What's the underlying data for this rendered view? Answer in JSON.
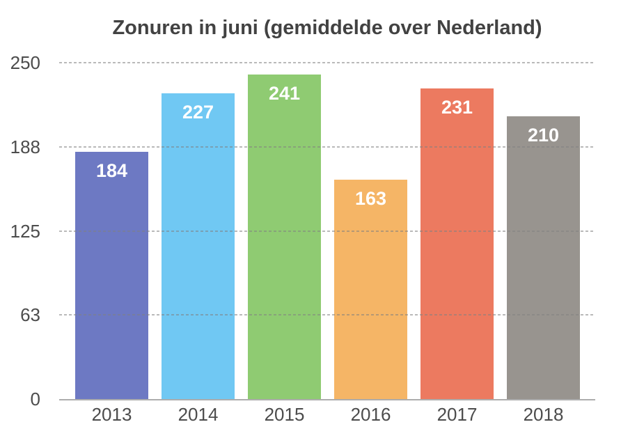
{
  "chart_data": {
    "type": "bar",
    "title": "Zonuren in juni (gemiddelde over Nederland)",
    "xlabel": "",
    "ylabel": "",
    "categories": [
      "2013",
      "2014",
      "2015",
      "2016",
      "2017",
      "2018"
    ],
    "values": [
      184,
      227,
      241,
      163,
      231,
      210
    ],
    "bar_colors": [
      "#6d79c3",
      "#70c8f3",
      "#8fcb72",
      "#f5b566",
      "#ec7a60",
      "#98948f"
    ],
    "value_label_color": "#ffffff",
    "ylim": [
      0,
      250
    ],
    "yticks": [
      {
        "value": 0,
        "label": "0"
      },
      {
        "value": 62.5,
        "label": "63"
      },
      {
        "value": 125,
        "label": "125"
      },
      {
        "value": 187.5,
        "label": "188"
      },
      {
        "value": 250,
        "label": "250"
      }
    ],
    "grid": "horizontal dashed gridlines drawn over bars",
    "legend": "none"
  },
  "colors": {
    "background": "#ffffff",
    "title_text": "#424242",
    "axis_text": "#4c4c4c",
    "gridline": "#c2c2c2",
    "axis_line": "#adadad"
  }
}
